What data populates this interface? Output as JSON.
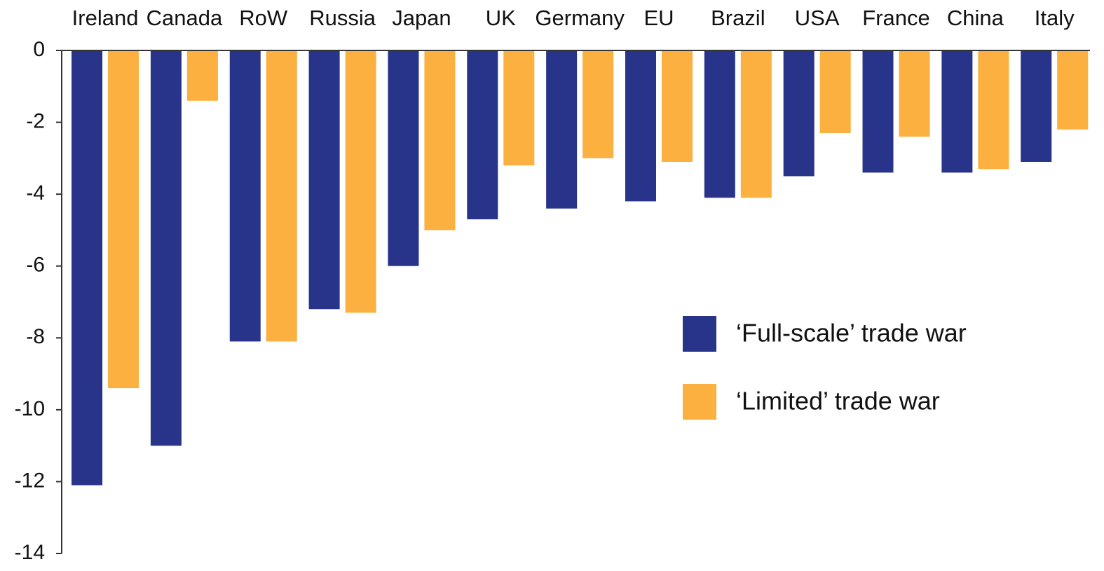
{
  "chart_data": {
    "type": "bar",
    "categories": [
      "Ireland",
      "Canada",
      "RoW",
      "Russia",
      "Japan",
      "UK",
      "Germany",
      "EU",
      "Brazil",
      "USA",
      "France",
      "China",
      "Italy"
    ],
    "series": [
      {
        "name": "‘Full-scale’ trade war",
        "color": "#28348a",
        "values": [
          -12.1,
          -11.0,
          -8.1,
          -7.2,
          -6.0,
          -4.7,
          -4.4,
          -4.2,
          -4.1,
          -3.5,
          -3.4,
          -3.4,
          -3.1
        ]
      },
      {
        "name": "‘Limited’ trade war",
        "color": "#fbb040",
        "values": [
          -9.4,
          -1.4,
          -8.1,
          -7.3,
          -5.0,
          -3.2,
          -3.0,
          -3.1,
          -4.1,
          -2.3,
          -2.4,
          -3.3,
          -2.2
        ]
      }
    ],
    "ylim": [
      -14,
      0
    ],
    "yticks": [
      0,
      -2,
      -4,
      -6,
      -8,
      -10,
      -12,
      -14
    ],
    "legend": "right"
  }
}
